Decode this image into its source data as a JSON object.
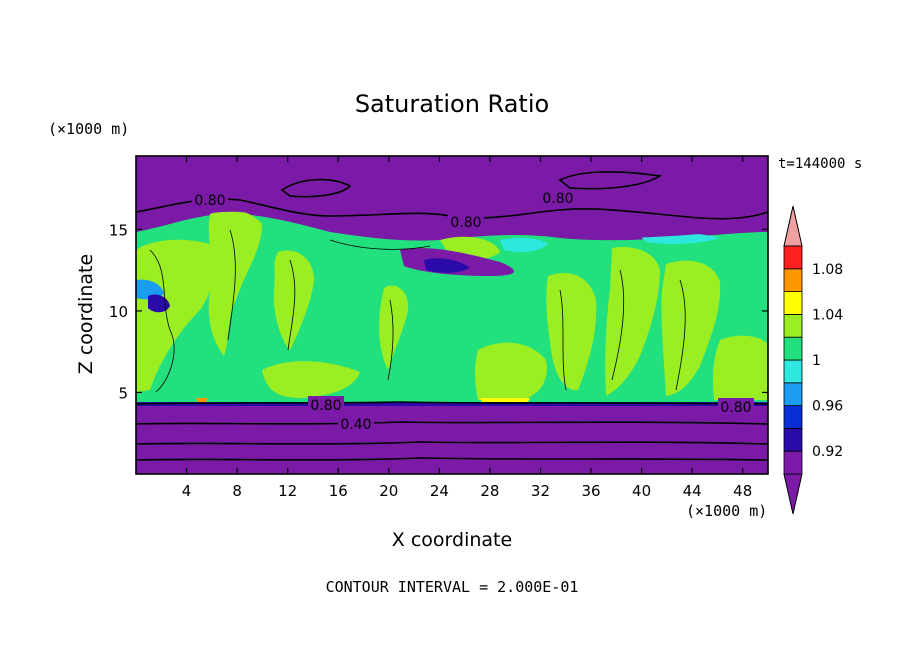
{
  "chart_data": {
    "type": "heatmap",
    "title": "Saturation Ratio",
    "xlabel": "X coordinate",
    "ylabel": "Z coordinate",
    "x_unit": "(×1000 m)",
    "y_unit": "(×1000 m)",
    "time_label": "t=144000 s",
    "footer": "CONTOUR INTERVAL = 2.000E-01",
    "xlim": [
      0,
      50
    ],
    "ylim": [
      0,
      19.5
    ],
    "x_ticks": [
      "4",
      "8",
      "12",
      "16",
      "20",
      "24",
      "28",
      "32",
      "36",
      "40",
      "44",
      "48"
    ],
    "y_ticks": [
      "5",
      "10",
      "15"
    ],
    "colorbar": {
      "levels": [
        0.9,
        0.92,
        0.94,
        0.96,
        0.98,
        1.0,
        1.02,
        1.04,
        1.06,
        1.08,
        1.1
      ],
      "labels": [
        "0.92",
        "0.96",
        "1",
        "1.04",
        "1.08"
      ],
      "colors": [
        "#7a1aa6",
        "#2a0aa8",
        "#0a2ed6",
        "#1a9cf0",
        "#2ee8e0",
        "#22e07e",
        "#9aee22",
        "#ffff00",
        "#ff9800",
        "#ff2020",
        "#f0a0a0"
      ]
    },
    "contour_labels": [
      "0.80",
      "0.80",
      "0.80",
      "0.80",
      "0.80",
      "0.40"
    ],
    "regions": {
      "upper_dry_top_z": 19.5,
      "moist_layer_top_z": 16.0,
      "moist_layer_bottom_z": 4.5,
      "lower_dry_bottom_z": 0
    }
  }
}
